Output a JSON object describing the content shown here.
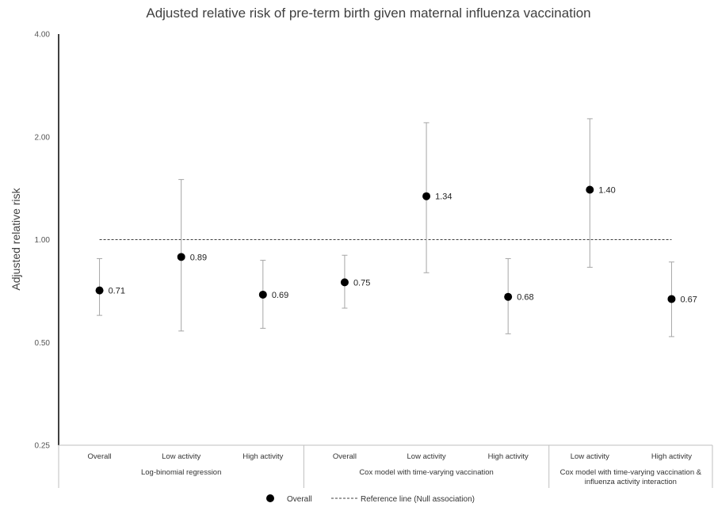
{
  "chart_data": {
    "type": "scatter",
    "title": "Adjusted relative risk of pre-term birth given maternal influenza vaccination",
    "ylabel": "Adjusted relative risk",
    "xlabel": "",
    "yscale": "log2",
    "ylim": [
      0.25,
      4.0
    ],
    "yticks": [
      {
        "value": 0.25,
        "label": "0.25"
      },
      {
        "value": 0.5,
        "label": "0.50"
      },
      {
        "value": 1.0,
        "label": "1.00"
      },
      {
        "value": 2.0,
        "label": "2.00"
      },
      {
        "value": 4.0,
        "label": "4.00"
      }
    ],
    "reference_line": {
      "value": 1.0,
      "label": "Reference line (Null association)"
    },
    "groups": [
      {
        "name": "Log-binomial regression",
        "categories": [
          "Overall",
          "Low activity",
          "High activity"
        ]
      },
      {
        "name": "Cox model with time-varying vaccination",
        "categories": [
          "Overall",
          "Low activity",
          "High activity"
        ]
      },
      {
        "name": "Cox model with time-varying vaccination & influenza activity interaction",
        "lines": [
          "Cox model with time-varying vaccination &",
          "influenza activity interaction"
        ],
        "categories": [
          "Low activity",
          "High activity"
        ]
      }
    ],
    "series": [
      {
        "name": "Overall",
        "points": [
          {
            "value": 0.71,
            "lower": 0.6,
            "upper": 0.88,
            "label": "0.71"
          },
          {
            "value": 0.89,
            "lower": 0.54,
            "upper": 1.5,
            "label": "0.89"
          },
          {
            "value": 0.69,
            "lower": 0.55,
            "upper": 0.87,
            "label": "0.69"
          },
          {
            "value": 0.75,
            "lower": 0.63,
            "upper": 0.9,
            "label": "0.75"
          },
          {
            "value": 1.34,
            "lower": 0.8,
            "upper": 2.2,
            "label": "1.34"
          },
          {
            "value": 0.68,
            "lower": 0.53,
            "upper": 0.88,
            "label": "0.68"
          },
          {
            "value": 1.4,
            "lower": 0.83,
            "upper": 2.26,
            "label": "1.40"
          },
          {
            "value": 0.67,
            "lower": 0.52,
            "upper": 0.86,
            "label": "0.67"
          }
        ]
      }
    ],
    "legend": {
      "position": "bottom",
      "entries": [
        {
          "label": "Overall",
          "marker": "circle"
        },
        {
          "label": "Reference line (Null association)",
          "marker": "dashed-line"
        }
      ]
    },
    "colors": {
      "marker": "#000000",
      "errorbar": "#a6a6a6",
      "reference": "#404040",
      "axis": "#000000"
    }
  }
}
